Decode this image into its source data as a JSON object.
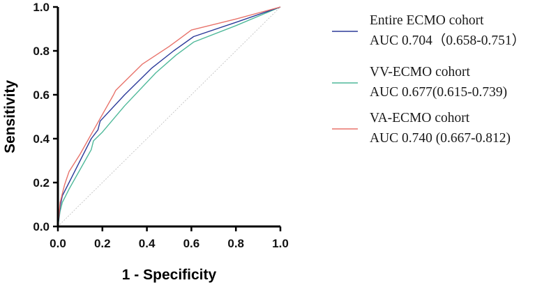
{
  "chart_data": {
    "type": "line",
    "title": "",
    "xlabel": "1 - Specificity",
    "ylabel": "Sensitivity",
    "xlim": [
      0,
      1
    ],
    "ylim": [
      0,
      1
    ],
    "xticks": [
      "0.0",
      "0.2",
      "0.4",
      "0.6",
      "0.8",
      "1.0"
    ],
    "yticks": [
      "0.0",
      "0.2",
      "0.4",
      "0.6",
      "0.8",
      "1.0"
    ],
    "grid": false,
    "reference_line": {
      "name": "chance",
      "x": [
        0,
        1
      ],
      "y": [
        0,
        1
      ],
      "color": "#bbbbbb"
    },
    "legend_position": "right",
    "series": [
      {
        "name": "Entire ECMO cohort",
        "auc_text": "AUC 0.704（0.658-0.751）",
        "color": "#2b3a99",
        "x": [
          0,
          0.01,
          0.02,
          0.05,
          0.1,
          0.15,
          0.18,
          0.19,
          0.3,
          0.42,
          0.52,
          0.61,
          0.8,
          1.0
        ],
        "y": [
          0,
          0.09,
          0.14,
          0.2,
          0.3,
          0.4,
          0.44,
          0.48,
          0.6,
          0.72,
          0.8,
          0.865,
          0.93,
          1.0
        ]
      },
      {
        "name": "VV-ECMO cohort",
        "auc_text": "AUC 0.677(0.615-0.739)",
        "color": "#4fb99a",
        "x": [
          0,
          0.01,
          0.02,
          0.05,
          0.1,
          0.15,
          0.16,
          0.2,
          0.3,
          0.44,
          0.53,
          0.61,
          0.8,
          1.0
        ],
        "y": [
          0,
          0.07,
          0.11,
          0.17,
          0.26,
          0.35,
          0.39,
          0.43,
          0.55,
          0.7,
          0.78,
          0.84,
          0.915,
          1.0
        ]
      },
      {
        "name": "VA-ECMO cohort",
        "auc_text": "AUC 0.740 (0.667-0.812)",
        "color": "#e8736b",
        "x": [
          0,
          0.01,
          0.03,
          0.05,
          0.1,
          0.15,
          0.2,
          0.25,
          0.26,
          0.38,
          0.5,
          0.6,
          0.8,
          1.0
        ],
        "y": [
          0,
          0.11,
          0.19,
          0.25,
          0.33,
          0.42,
          0.51,
          0.6,
          0.62,
          0.74,
          0.82,
          0.895,
          0.945,
          1.0
        ]
      }
    ]
  }
}
